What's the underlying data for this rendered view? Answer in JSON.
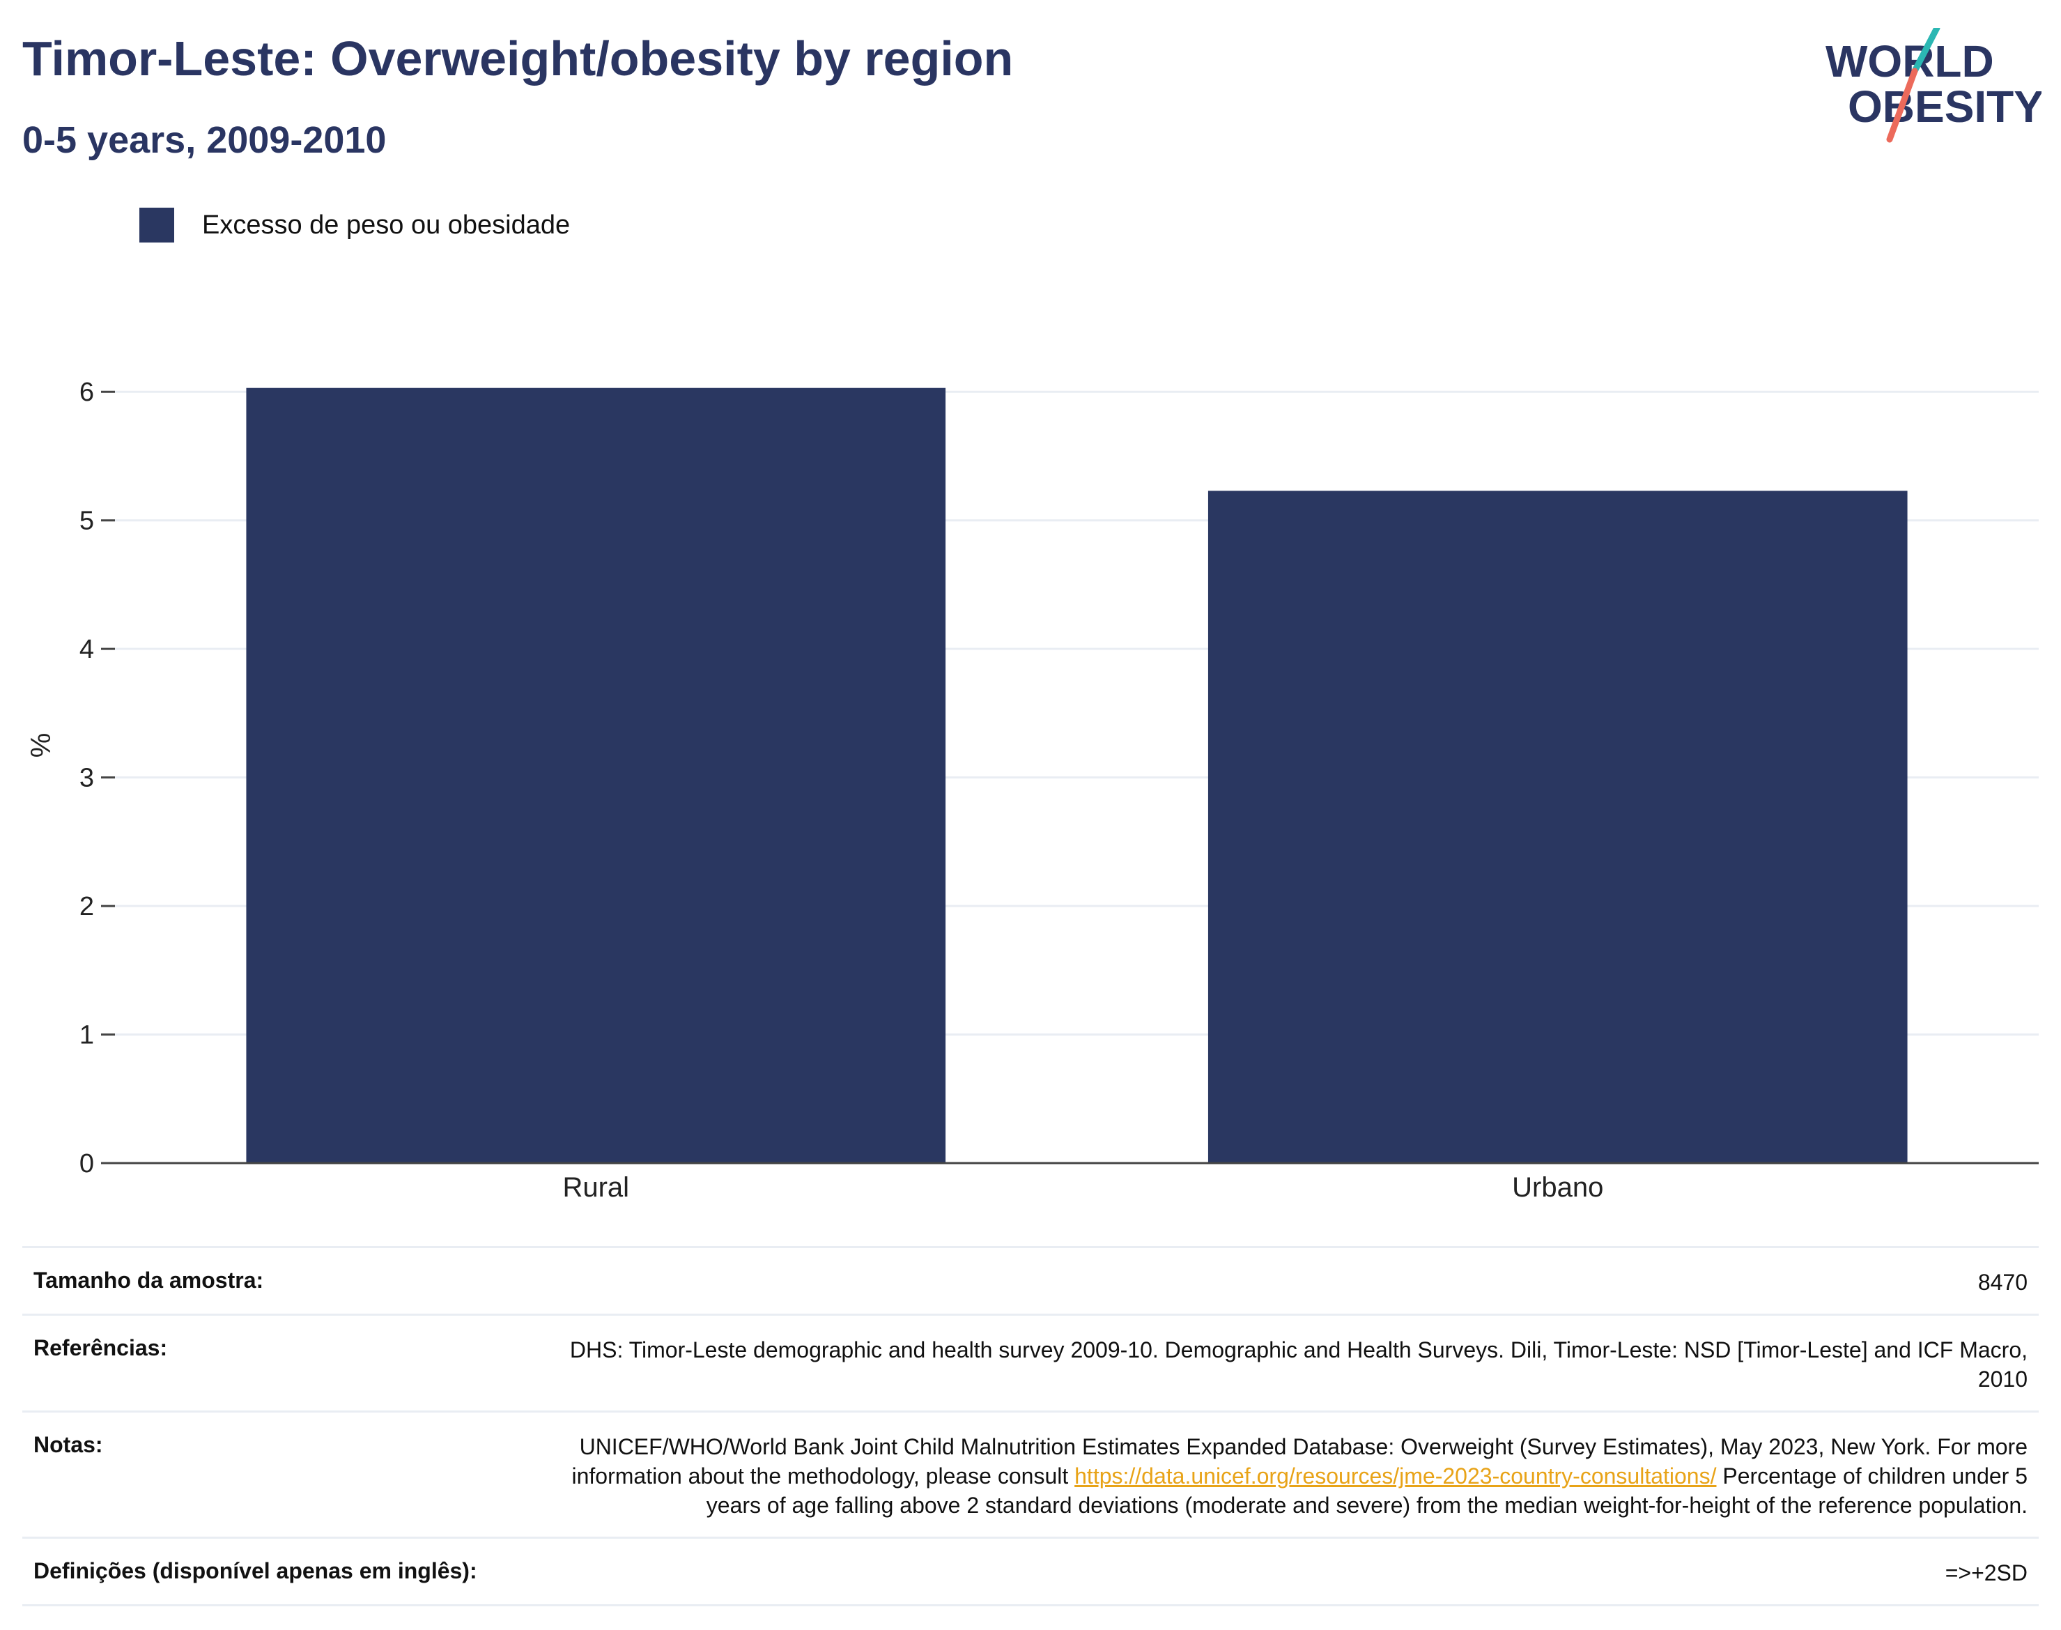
{
  "header": {
    "title": "Timor-Leste: Overweight/obesity by region",
    "subtitle": "0-5 years, 2009-2010",
    "logo_line1": "WORLD",
    "logo_line2": "OBESITY"
  },
  "colors": {
    "bar": "#2a3761",
    "title": "#2a3562",
    "logo_teal": "#2bb7b3",
    "logo_coral": "#ec6a5b",
    "link": "#e8a317"
  },
  "chart_data": {
    "type": "bar",
    "categories": [
      "Rural",
      "Urbano"
    ],
    "series": [
      {
        "name": "Excesso de peso ou obesidade",
        "values": [
          6.03,
          5.23
        ]
      }
    ],
    "title": "Timor-Leste: Overweight/obesity by region",
    "subtitle": "0-5 years, 2009-2010",
    "xlabel": "",
    "ylabel": "%",
    "ylim": [
      0,
      6.5
    ],
    "yticks": [
      0,
      1,
      2,
      3,
      4,
      5,
      6
    ],
    "grid": true,
    "legend_position": "top-left"
  },
  "info": {
    "sample_label": "Tamanho da amostra:",
    "sample_value": "8470",
    "references_label": "Referências:",
    "references_value": "DHS: Timor-Leste demographic and health survey 2009-10. Demographic and Health Surveys. Dili, Timor-Leste: NSD [Timor-Leste] and ICF Macro, 2010",
    "notes_label": "Notas:",
    "notes_text_before": "UNICEF/WHO/World Bank Joint Child Malnutrition Estimates Expanded Database: Overweight (Survey Estimates), May 2023, New York. For more information about the methodology, please consult ",
    "notes_link": "https://data.unicef.org/resources/jme-2023-country-consultations/",
    "notes_text_after": " Percentage of children under 5 years of age falling above 2 standard deviations (moderate and severe) from the median weight-for-height of the reference population.",
    "definitions_label": "Definições (disponível apenas em inglês):",
    "definitions_value": "=>+2SD"
  }
}
